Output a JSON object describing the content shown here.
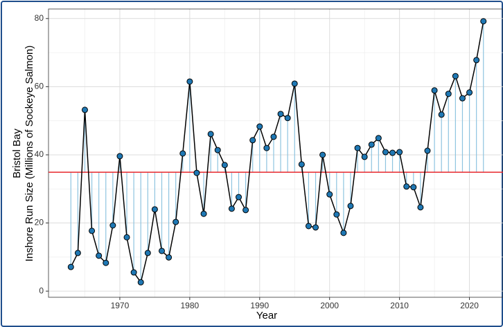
{
  "chart_data": {
    "type": "line",
    "x_label": "Year",
    "y_label": [
      "Bristol Bay",
      "Inshore Run Size (Millions of Sockeye Salmon)"
    ],
    "x": [
      1963,
      1964,
      1965,
      1966,
      1967,
      1968,
      1969,
      1970,
      1971,
      1972,
      1973,
      1974,
      1975,
      1976,
      1977,
      1978,
      1979,
      1980,
      1981,
      1982,
      1983,
      1984,
      1985,
      1986,
      1987,
      1988,
      1989,
      1990,
      1991,
      1992,
      1993,
      1994,
      1995,
      1996,
      1997,
      1998,
      1999,
      2000,
      2001,
      2002,
      2003,
      2004,
      2005,
      2006,
      2007,
      2008,
      2009,
      2010,
      2011,
      2012,
      2013,
      2014,
      2015,
      2016,
      2017,
      2018,
      2019,
      2020,
      2021,
      2022
    ],
    "series": [
      {
        "color": "#1f78b4",
        "line_color": "#000000",
        "stem_color": "#8ec4e0",
        "values": [
          7.1,
          11.2,
          53.2,
          17.7,
          10.4,
          8.3,
          19.3,
          39.6,
          15.8,
          5.5,
          2.6,
          11.2,
          24.0,
          11.8,
          9.9,
          20.3,
          40.4,
          61.5,
          34.7,
          22.7,
          46.1,
          41.4,
          37.0,
          24.2,
          27.6,
          23.8,
          44.3,
          48.3,
          42.0,
          45.3,
          52.0,
          50.8,
          60.9,
          37.2,
          19.1,
          18.7,
          40.0,
          28.4,
          22.5,
          17.1,
          25.0,
          42.0,
          39.4,
          43.0,
          44.9,
          40.8,
          40.6,
          40.8,
          30.7,
          30.5,
          24.6,
          41.2,
          58.9,
          51.8,
          57.9,
          63.1,
          56.6,
          58.3,
          67.8,
          79.2
        ]
      }
    ],
    "mean_line": {
      "value": 34.9,
      "color": "#e8262b"
    },
    "xlim": [
      1959.8,
      2024.8
    ],
    "ylim": [
      -1.8,
      82.8
    ],
    "xticks": [
      1970,
      1980,
      1990,
      2000,
      2010,
      2020
    ],
    "yticks": [
      0,
      20,
      40,
      60,
      80
    ],
    "minor_xticks": [
      1965,
      1975,
      1985,
      1995,
      2005,
      2015
    ],
    "minor_yticks": [
      10,
      30,
      50,
      70
    ],
    "grid": true
  }
}
